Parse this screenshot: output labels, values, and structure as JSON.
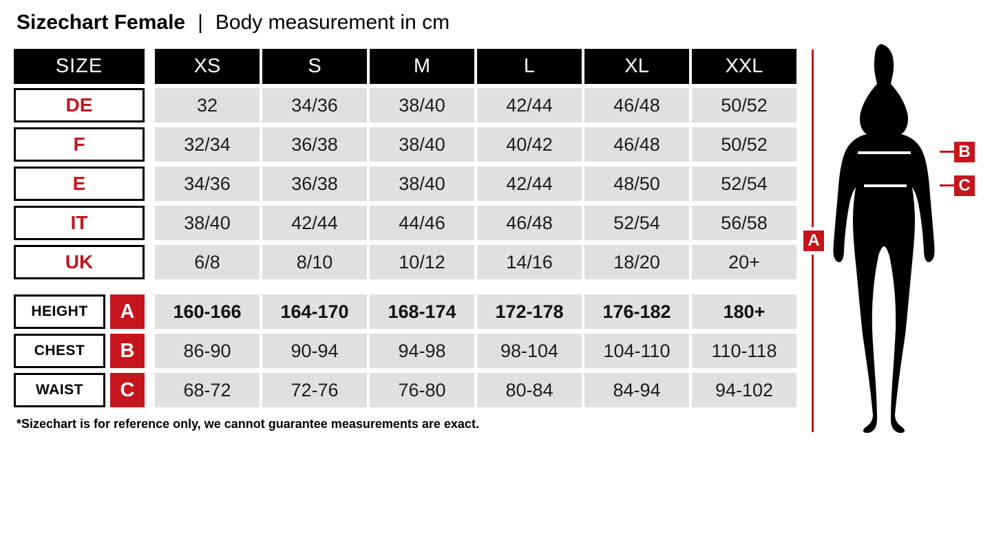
{
  "title": {
    "main": "Sizechart Female",
    "separator": "|",
    "subtitle": "Body measurement in cm"
  },
  "table": {
    "columns_label": "SIZE",
    "columns": [
      "XS",
      "S",
      "M",
      "L",
      "XL",
      "XXL"
    ],
    "size_rows": [
      {
        "label": "DE",
        "values": [
          "32",
          "34/36",
          "38/40",
          "42/44",
          "46/48",
          "50/52"
        ]
      },
      {
        "label": "F",
        "values": [
          "32/34",
          "36/38",
          "38/40",
          "40/42",
          "46/48",
          "50/52"
        ]
      },
      {
        "label": "E",
        "values": [
          "34/36",
          "36/38",
          "38/40",
          "42/44",
          "48/50",
          "52/54"
        ]
      },
      {
        "label": "IT",
        "values": [
          "38/40",
          "42/44",
          "44/46",
          "46/48",
          "52/54",
          "56/58"
        ]
      },
      {
        "label": "UK",
        "values": [
          "6/8",
          "8/10",
          "10/12",
          "14/16",
          "18/20",
          "20+"
        ]
      }
    ],
    "measure_rows": [
      {
        "label": "HEIGHT",
        "letter": "A",
        "bold": true,
        "values": [
          "160-166",
          "164-170",
          "168-174",
          "172-178",
          "176-182",
          "180+"
        ]
      },
      {
        "label": "CHEST",
        "letter": "B",
        "bold": false,
        "values": [
          "86-90",
          "90-94",
          "94-98",
          "98-104",
          "104-110",
          "110-118"
        ]
      },
      {
        "label": "WAIST",
        "letter": "C",
        "bold": false,
        "values": [
          "68-72",
          "72-76",
          "76-80",
          "80-84",
          "84-94",
          "94-102"
        ]
      }
    ]
  },
  "figure": {
    "marker_a": "A",
    "marker_b": "B",
    "marker_c": "C"
  },
  "footnote": "*Sizechart is for reference only, we cannot guarantee measurements are exact.",
  "colors": {
    "accent_red": "#c4161c",
    "cell_gray": "#e0e0e0",
    "header_black": "#000000"
  },
  "chart_data": {
    "type": "table",
    "title": "Sizechart Female | Body measurement in cm",
    "columns": [
      "SIZE",
      "XS",
      "S",
      "M",
      "L",
      "XL",
      "XXL"
    ],
    "rows": [
      [
        "DE",
        "32",
        "34/36",
        "38/40",
        "42/44",
        "46/48",
        "50/52"
      ],
      [
        "F",
        "32/34",
        "36/38",
        "38/40",
        "40/42",
        "46/48",
        "50/52"
      ],
      [
        "E",
        "34/36",
        "36/38",
        "38/40",
        "42/44",
        "48/50",
        "52/54"
      ],
      [
        "IT",
        "38/40",
        "42/44",
        "44/46",
        "46/48",
        "52/54",
        "56/58"
      ],
      [
        "UK",
        "6/8",
        "8/10",
        "10/12",
        "14/16",
        "18/20",
        "20+"
      ],
      [
        "HEIGHT (A)",
        "160-166",
        "164-170",
        "168-174",
        "172-178",
        "176-182",
        "180+"
      ],
      [
        "CHEST (B)",
        "86-90",
        "90-94",
        "94-98",
        "98-104",
        "104-110",
        "110-118"
      ],
      [
        "WAIST (C)",
        "68-72",
        "72-76",
        "76-80",
        "80-84",
        "84-94",
        "94-102"
      ]
    ],
    "footnote": "*Sizechart is for reference only, we cannot guarantee measurements are exact."
  }
}
